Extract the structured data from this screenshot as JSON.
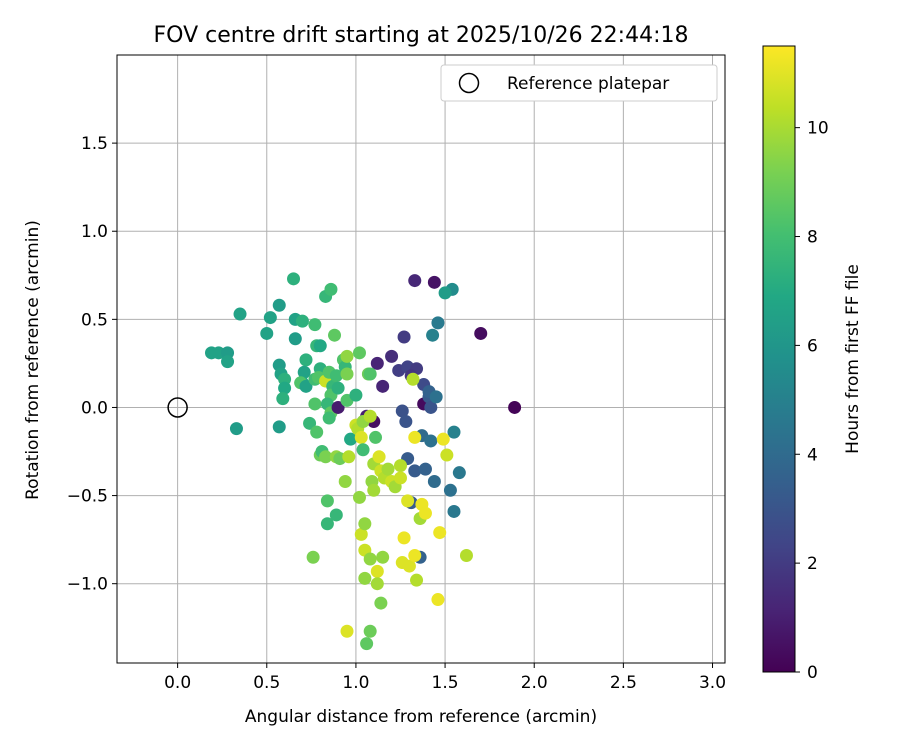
{
  "chart_data": {
    "type": "scatter",
    "title": "FOV centre drift starting at 2025/10/26 22:44:18",
    "xlabel": "Angular distance from reference (arcmin)",
    "ylabel": "Rotation from reference (arcmin)",
    "xlim": [
      -0.34,
      3.07
    ],
    "ylim": [
      -1.45,
      2.0
    ],
    "xticks": [
      0.0,
      0.5,
      1.0,
      1.5,
      2.0,
      2.5,
      3.0
    ],
    "xtick_labels": [
      "0.0",
      "0.5",
      "1.0",
      "1.5",
      "2.0",
      "2.5",
      "3.0"
    ],
    "yticks": [
      -1.0,
      -0.5,
      0.0,
      0.5,
      1.0,
      1.5
    ],
    "ytick_labels": [
      "−1.0",
      "−0.5",
      "0.0",
      "0.5",
      "1.0",
      "1.5"
    ],
    "grid": true,
    "legend": {
      "position": "top-right",
      "entries": [
        {
          "label": "Reference platepar",
          "marker": "open-circle"
        }
      ]
    },
    "reference_point": {
      "x": 0.0,
      "y": 0.0
    },
    "colorbar": {
      "label": "Hours from first FF file",
      "colormap": "viridis",
      "range": [
        0,
        11.5
      ],
      "ticks": [
        0,
        2,
        4,
        6,
        8,
        10
      ],
      "tick_labels": [
        "0",
        "2",
        "4",
        "6",
        "8",
        "10"
      ]
    },
    "points": [
      {
        "x": 1.89,
        "y": 0.0,
        "h": 0.1
      },
      {
        "x": 1.7,
        "y": 0.42,
        "h": 0.4
      },
      {
        "x": 1.44,
        "y": 0.71,
        "h": 0.6
      },
      {
        "x": 1.33,
        "y": 0.72,
        "h": 1.3
      },
      {
        "x": 1.38,
        "y": 0.02,
        "h": 0.3
      },
      {
        "x": 1.12,
        "y": 0.25,
        "h": 1.2
      },
      {
        "x": 1.2,
        "y": 0.29,
        "h": 1.5
      },
      {
        "x": 1.15,
        "y": 0.12,
        "h": 1.2
      },
      {
        "x": 1.1,
        "y": -0.08,
        "h": 0.5
      },
      {
        "x": 1.06,
        "y": -0.05,
        "h": 1.0
      },
      {
        "x": 1.27,
        "y": 0.4,
        "h": 2.0
      },
      {
        "x": 1.24,
        "y": 0.21,
        "h": 2.1
      },
      {
        "x": 1.29,
        "y": 0.23,
        "h": 2.3
      },
      {
        "x": 1.34,
        "y": 0.22,
        "h": 2.0
      },
      {
        "x": 1.31,
        "y": 0.18,
        "h": 1.8
      },
      {
        "x": 1.38,
        "y": 0.13,
        "h": 2.6
      },
      {
        "x": 1.26,
        "y": -0.02,
        "h": 2.9
      },
      {
        "x": 1.28,
        "y": -0.08,
        "h": 3.0
      },
      {
        "x": 1.41,
        "y": 0.06,
        "h": 3.3
      },
      {
        "x": 1.42,
        "y": 0.0,
        "h": 3.0
      },
      {
        "x": 1.41,
        "y": 0.09,
        "h": 3.6
      },
      {
        "x": 1.45,
        "y": 0.06,
        "h": 4.3
      },
      {
        "x": 1.43,
        "y": 0.41,
        "h": 5.0
      },
      {
        "x": 1.46,
        "y": 0.48,
        "h": 4.7
      },
      {
        "x": 1.54,
        "y": 0.67,
        "h": 5.5
      },
      {
        "x": 1.37,
        "y": -0.16,
        "h": 4.0
      },
      {
        "x": 1.42,
        "y": -0.19,
        "h": 4.3
      },
      {
        "x": 1.29,
        "y": -0.29,
        "h": 3.3
      },
      {
        "x": 1.33,
        "y": -0.36,
        "h": 3.3
      },
      {
        "x": 1.39,
        "y": -0.35,
        "h": 3.6
      },
      {
        "x": 1.44,
        "y": -0.42,
        "h": 4.0
      },
      {
        "x": 1.53,
        "y": -0.47,
        "h": 4.3
      },
      {
        "x": 1.31,
        "y": -0.54,
        "h": 3.3
      },
      {
        "x": 1.58,
        "y": -0.37,
        "h": 4.6
      },
      {
        "x": 1.55,
        "y": -0.14,
        "h": 5.0
      },
      {
        "x": 1.55,
        "y": -0.59,
        "h": 4.6
      },
      {
        "x": 1.36,
        "y": -0.85,
        "h": 3.6
      },
      {
        "x": 0.19,
        "y": 0.31,
        "h": 6.6
      },
      {
        "x": 0.23,
        "y": 0.31,
        "h": 6.6
      },
      {
        "x": 0.28,
        "y": 0.31,
        "h": 6.3
      },
      {
        "x": 0.28,
        "y": 0.26,
        "h": 6.6
      },
      {
        "x": 0.35,
        "y": 0.53,
        "h": 6.6
      },
      {
        "x": 0.33,
        "y": -0.12,
        "h": 6.3
      },
      {
        "x": 0.5,
        "y": 0.42,
        "h": 6.6
      },
      {
        "x": 0.52,
        "y": 0.51,
        "h": 6.6
      },
      {
        "x": 0.57,
        "y": 0.58,
        "h": 6.3
      },
      {
        "x": 0.57,
        "y": 0.24,
        "h": 6.3
      },
      {
        "x": 0.58,
        "y": 0.19,
        "h": 6.6
      },
      {
        "x": 0.6,
        "y": 0.16,
        "h": 7.3
      },
      {
        "x": 0.6,
        "y": 0.11,
        "h": 6.9
      },
      {
        "x": 0.59,
        "y": 0.05,
        "h": 7.3
      },
      {
        "x": 0.57,
        "y": -0.11,
        "h": 6.3
      },
      {
        "x": 0.65,
        "y": 0.73,
        "h": 7.3
      },
      {
        "x": 0.66,
        "y": 0.5,
        "h": 6.6
      },
      {
        "x": 0.66,
        "y": 0.39,
        "h": 6.3
      },
      {
        "x": 0.7,
        "y": 0.49,
        "h": 7.3
      },
      {
        "x": 0.72,
        "y": 0.27,
        "h": 7.3
      },
      {
        "x": 0.71,
        "y": 0.2,
        "h": 6.6
      },
      {
        "x": 0.7,
        "y": 0.14,
        "h": 6.9
      },
      {
        "x": 0.69,
        "y": 0.14,
        "h": 8.3
      },
      {
        "x": 0.72,
        "y": 0.12,
        "h": 6.6
      },
      {
        "x": 0.77,
        "y": 0.47,
        "h": 7.9
      },
      {
        "x": 0.78,
        "y": 0.35,
        "h": 7.6
      },
      {
        "x": 0.8,
        "y": 0.35,
        "h": 6.9
      },
      {
        "x": 0.77,
        "y": 0.16,
        "h": 7.9
      },
      {
        "x": 0.8,
        "y": 0.22,
        "h": 7.3
      },
      {
        "x": 0.79,
        "y": 0.17,
        "h": 8.3
      },
      {
        "x": 0.77,
        "y": 0.02,
        "h": 8.3
      },
      {
        "x": 0.74,
        "y": -0.09,
        "h": 7.6
      },
      {
        "x": 0.78,
        "y": -0.14,
        "h": 8.3
      },
      {
        "x": 0.8,
        "y": -0.27,
        "h": 8.9
      },
      {
        "x": 0.81,
        "y": -0.25,
        "h": 7.9
      },
      {
        "x": 0.83,
        "y": 0.63,
        "h": 7.6
      },
      {
        "x": 0.86,
        "y": 0.67,
        "h": 7.9
      },
      {
        "x": 0.83,
        "y": 0.15,
        "h": 10.6
      },
      {
        "x": 0.85,
        "y": 0.2,
        "h": 8.3
      },
      {
        "x": 0.87,
        "y": 0.12,
        "h": 7.6
      },
      {
        "x": 0.86,
        "y": 0.07,
        "h": 8.3
      },
      {
        "x": 0.84,
        "y": 0.02,
        "h": 7.6
      },
      {
        "x": 0.86,
        "y": -0.03,
        "h": 8.6
      },
      {
        "x": 0.85,
        "y": -0.06,
        "h": 7.9
      },
      {
        "x": 0.83,
        "y": -0.28,
        "h": 9.2
      },
      {
        "x": 0.88,
        "y": 0.41,
        "h": 8.6
      },
      {
        "x": 0.89,
        "y": 0.18,
        "h": 7.9
      },
      {
        "x": 0.9,
        "y": 0.11,
        "h": 7.3
      },
      {
        "x": 0.9,
        "y": 0.0,
        "h": 0.9
      },
      {
        "x": 0.89,
        "y": -0.28,
        "h": 9.6
      },
      {
        "x": 0.91,
        "y": -0.29,
        "h": 8.9
      },
      {
        "x": 0.93,
        "y": 0.27,
        "h": 8.3
      },
      {
        "x": 0.94,
        "y": 0.23,
        "h": 7.6
      },
      {
        "x": 0.95,
        "y": 0.29,
        "h": 9.6
      },
      {
        "x": 0.95,
        "y": 0.19,
        "h": 9.2
      },
      {
        "x": 0.95,
        "y": 0.04,
        "h": 8.3
      },
      {
        "x": 0.97,
        "y": -0.18,
        "h": 6.9
      },
      {
        "x": 0.96,
        "y": -0.28,
        "h": 10.2
      },
      {
        "x": 0.94,
        "y": -0.42,
        "h": 9.6
      },
      {
        "x": 1.0,
        "y": 0.07,
        "h": 7.3
      },
      {
        "x": 1.02,
        "y": 0.31,
        "h": 8.6
      },
      {
        "x": 1.0,
        "y": -0.1,
        "h": 10.6
      },
      {
        "x": 1.01,
        "y": -0.12,
        "h": 10.2
      },
      {
        "x": 1.03,
        "y": -0.17,
        "h": 10.9
      },
      {
        "x": 1.04,
        "y": -0.24,
        "h": 7.9
      },
      {
        "x": 1.04,
        "y": -0.08,
        "h": 9.6
      },
      {
        "x": 1.08,
        "y": -0.05,
        "h": 10.2
      },
      {
        "x": 1.07,
        "y": 0.19,
        "h": 8.9
      },
      {
        "x": 1.08,
        "y": 0.19,
        "h": 8.3
      },
      {
        "x": 1.11,
        "y": -0.17,
        "h": 8.3
      },
      {
        "x": 1.02,
        "y": -0.51,
        "h": 9.6
      },
      {
        "x": 1.03,
        "y": -0.72,
        "h": 10.6
      },
      {
        "x": 1.05,
        "y": -0.66,
        "h": 9.6
      },
      {
        "x": 1.05,
        "y": -0.81,
        "h": 10.6
      },
      {
        "x": 1.08,
        "y": -0.86,
        "h": 9.6
      },
      {
        "x": 1.05,
        "y": -0.97,
        "h": 9.6
      },
      {
        "x": 1.06,
        "y": -1.34,
        "h": 8.6
      },
      {
        "x": 1.08,
        "y": -1.27,
        "h": 8.9
      },
      {
        "x": 0.95,
        "y": -1.27,
        "h": 10.9
      },
      {
        "x": 1.12,
        "y": -0.93,
        "h": 10.9
      },
      {
        "x": 1.12,
        "y": -1.0,
        "h": 9.9
      },
      {
        "x": 1.14,
        "y": -1.11,
        "h": 9.2
      },
      {
        "x": 1.15,
        "y": -0.85,
        "h": 9.6
      },
      {
        "x": 1.09,
        "y": -0.42,
        "h": 9.6
      },
      {
        "x": 1.1,
        "y": -0.47,
        "h": 9.9
      },
      {
        "x": 1.1,
        "y": -0.32,
        "h": 9.9
      },
      {
        "x": 1.13,
        "y": -0.28,
        "h": 10.9
      },
      {
        "x": 1.14,
        "y": -0.36,
        "h": 10.6
      },
      {
        "x": 1.16,
        "y": -0.4,
        "h": 10.2
      },
      {
        "x": 1.18,
        "y": -0.35,
        "h": 9.9
      },
      {
        "x": 1.2,
        "y": -0.42,
        "h": 10.6
      },
      {
        "x": 1.22,
        "y": -0.45,
        "h": 9.9
      },
      {
        "x": 1.25,
        "y": -0.33,
        "h": 10.2
      },
      {
        "x": 1.25,
        "y": -0.4,
        "h": 10.6
      },
      {
        "x": 1.27,
        "y": -0.74,
        "h": 11.2
      },
      {
        "x": 1.26,
        "y": -0.88,
        "h": 10.9
      },
      {
        "x": 1.29,
        "y": -0.53,
        "h": 10.9
      },
      {
        "x": 1.3,
        "y": -0.9,
        "h": 10.9
      },
      {
        "x": 1.33,
        "y": -0.84,
        "h": 11.2
      },
      {
        "x": 1.34,
        "y": -0.98,
        "h": 10.2
      },
      {
        "x": 1.36,
        "y": -0.63,
        "h": 9.9
      },
      {
        "x": 1.37,
        "y": -0.55,
        "h": 11.2
      },
      {
        "x": 1.39,
        "y": -0.6,
        "h": 11.2
      },
      {
        "x": 1.33,
        "y": -0.17,
        "h": 11.2
      },
      {
        "x": 1.32,
        "y": 0.16,
        "h": 10.2
      },
      {
        "x": 1.47,
        "y": -0.71,
        "h": 11.2
      },
      {
        "x": 1.46,
        "y": -1.09,
        "h": 11.2
      },
      {
        "x": 1.49,
        "y": -0.18,
        "h": 11.2
      },
      {
        "x": 1.51,
        "y": -0.27,
        "h": 10.6
      },
      {
        "x": 1.62,
        "y": -0.84,
        "h": 10.2
      },
      {
        "x": 1.5,
        "y": 0.65,
        "h": 6.3
      },
      {
        "x": 0.76,
        "y": -0.85,
        "h": 9.2
      },
      {
        "x": 0.84,
        "y": -0.53,
        "h": 8.3
      },
      {
        "x": 0.84,
        "y": -0.66,
        "h": 7.6
      },
      {
        "x": 0.89,
        "y": -0.61,
        "h": 7.6
      }
    ]
  }
}
